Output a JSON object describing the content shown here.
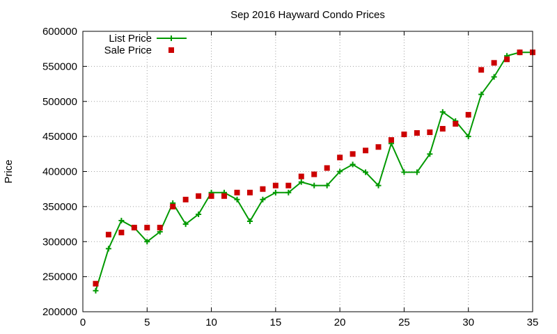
{
  "chart_data": {
    "type": "line",
    "title": "Sep 2016 Hayward Condo Prices",
    "xlabel": "",
    "ylabel": "Price",
    "xlim": [
      0,
      35
    ],
    "ylim": [
      200000,
      600000
    ],
    "x_ticks": [
      0,
      5,
      10,
      15,
      20,
      25,
      30,
      35
    ],
    "y_ticks": [
      200000,
      250000,
      300000,
      350000,
      400000,
      450000,
      500000,
      550000,
      600000
    ],
    "grid": true,
    "legend_position": "top-left",
    "series": [
      {
        "name": "List Price",
        "style": "line-with-plus-markers",
        "color": "#009900",
        "x": [
          1,
          2,
          3,
          4,
          5,
          6,
          7,
          8,
          9,
          10,
          11,
          12,
          13,
          14,
          15,
          16,
          17,
          18,
          19,
          20,
          21,
          22,
          23,
          24,
          25,
          26,
          27,
          28,
          29,
          30,
          31,
          32,
          33,
          34,
          35
        ],
        "y": [
          230000,
          290000,
          330000,
          320000,
          300000,
          314000,
          355000,
          325000,
          339000,
          370000,
          370000,
          360000,
          329000,
          360000,
          370000,
          370000,
          385000,
          380000,
          380000,
          400000,
          410000,
          399000,
          380000,
          440000,
          399000,
          399000,
          425000,
          485000,
          472000,
          450000,
          510000,
          535000,
          565000,
          570000,
          570000
        ]
      },
      {
        "name": "Sale Price",
        "style": "square-markers",
        "color": "#cc0000",
        "x": [
          1,
          2,
          3,
          4,
          5,
          6,
          7,
          8,
          9,
          10,
          11,
          12,
          13,
          14,
          15,
          16,
          17,
          18,
          19,
          20,
          21,
          22,
          23,
          24,
          25,
          26,
          27,
          28,
          29,
          30,
          31,
          32,
          33,
          34,
          35
        ],
        "y": [
          240000,
          310000,
          313000,
          320000,
          320000,
          320000,
          350000,
          360000,
          365000,
          365000,
          365000,
          370000,
          370000,
          375000,
          380000,
          380000,
          393000,
          396000,
          405000,
          420000,
          425000,
          430000,
          435000,
          445000,
          453000,
          455000,
          456000,
          461000,
          468000,
          481000,
          545000,
          555000,
          560000,
          570000,
          570000
        ]
      }
    ]
  }
}
